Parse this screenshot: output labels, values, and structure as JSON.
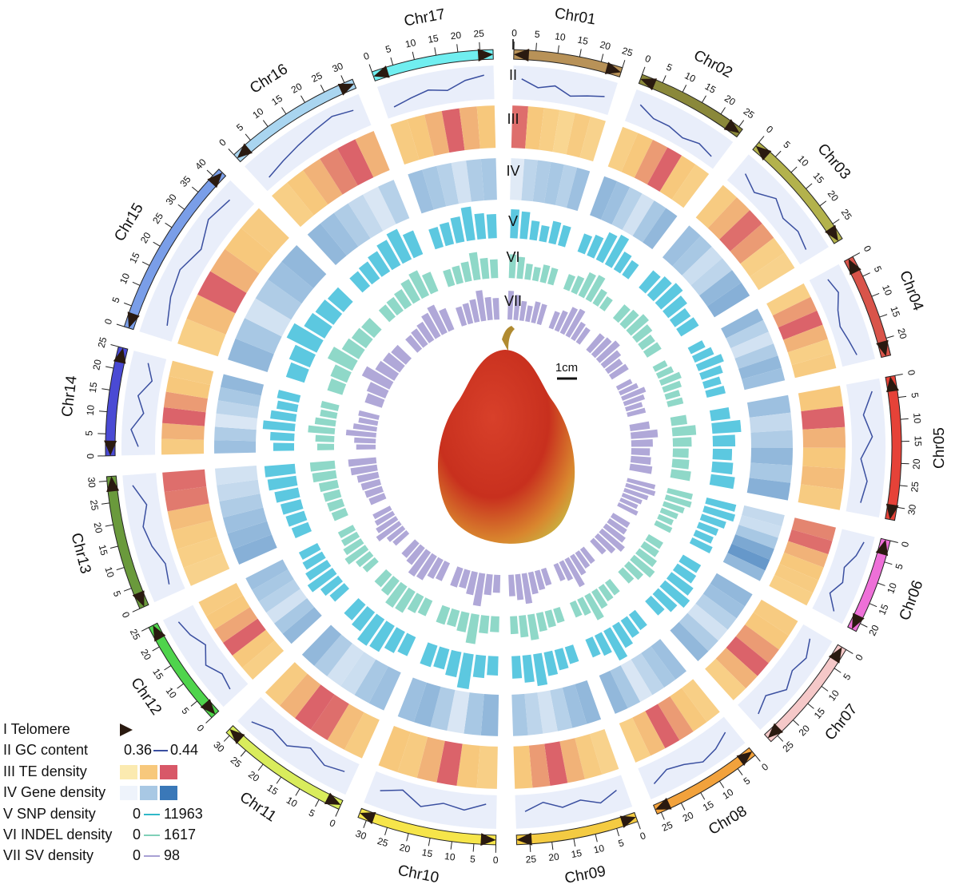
{
  "chart_data": {
    "type": "circos",
    "track_labels": [
      "I",
      "II",
      "III",
      "IV",
      "V",
      "VI",
      "VII"
    ],
    "scale_label": "1cm",
    "legend": [
      {
        "label": "I Telomere"
      },
      {
        "label": "II GC content",
        "min": 0.36,
        "max": 0.44
      },
      {
        "label": "III TE density"
      },
      {
        "label": "IV Gene density"
      },
      {
        "label": "V SNP density",
        "min": 0,
        "max": 11963
      },
      {
        "label": "VI INDEL density",
        "min": 0,
        "max": 1617
      },
      {
        "label": "VII SV density",
        "min": 0,
        "max": 98
      }
    ],
    "chromosomes": [
      {
        "name": "Chr01",
        "length": 25,
        "color": "#b89258",
        "ticks": [
          0,
          5,
          10,
          15,
          20,
          25
        ],
        "gc": [
          0.41,
          0.39,
          0.4,
          0.38,
          0.39,
          0.4
        ],
        "te": [
          0.9,
          0.5,
          0.4,
          0.3,
          0.45,
          0.35
        ],
        "gene": [
          0.1,
          0.35,
          0.45,
          0.5,
          0.4,
          0.55
        ],
        "snp": [
          9000,
          8500,
          6000,
          5000,
          7000,
          6500
        ],
        "indel": [
          1200,
          1100,
          800,
          700,
          900,
          850
        ],
        "sv": [
          80,
          70,
          55,
          45,
          60,
          58
        ]
      },
      {
        "name": "Chr02",
        "length": 26,
        "color": "#8a883a",
        "ticks": [
          0,
          5,
          10,
          15,
          20,
          25
        ],
        "gc": [
          0.41,
          0.39,
          0.39,
          0.38,
          0.39,
          0.38
        ],
        "te": [
          0.4,
          0.5,
          0.7,
          0.95,
          0.5,
          0.4
        ],
        "gene": [
          0.6,
          0.55,
          0.4,
          0.2,
          0.5,
          0.6
        ],
        "snp": [
          6000,
          7000,
          9500,
          10500,
          6500,
          5500
        ],
        "indel": [
          800,
          900,
          1300,
          1400,
          850,
          700
        ],
        "sv": [
          50,
          60,
          80,
          85,
          55,
          50
        ]
      },
      {
        "name": "Chr03",
        "length": 29,
        "color": "#b3b24c",
        "ticks": [
          0,
          5,
          10,
          15,
          20,
          25
        ],
        "gc": [
          0.4,
          0.38,
          0.41,
          0.39,
          0.4,
          0.39
        ],
        "te": [
          0.45,
          0.6,
          0.9,
          0.7,
          0.4,
          0.35
        ],
        "gene": [
          0.55,
          0.5,
          0.25,
          0.35,
          0.6,
          0.65
        ],
        "snp": [
          7000,
          8000,
          9000,
          7500,
          6000,
          6500
        ],
        "indel": [
          900,
          1000,
          1200,
          1000,
          800,
          850
        ],
        "sv": [
          60,
          65,
          75,
          60,
          50,
          55
        ]
      },
      {
        "name": "Chr04",
        "length": 24,
        "color": "#d9544a",
        "ticks": [
          0,
          5,
          10,
          15,
          20
        ],
        "gc": [
          0.4,
          0.41,
          0.39,
          0.38,
          0.39,
          0.4
        ],
        "te": [
          0.4,
          0.7,
          0.95,
          0.6,
          0.4,
          0.45
        ],
        "gene": [
          0.6,
          0.4,
          0.2,
          0.45,
          0.6,
          0.55
        ],
        "snp": [
          5000,
          6500,
          8500,
          7000,
          5500,
          6000
        ],
        "indel": [
          700,
          850,
          1100,
          950,
          750,
          800
        ],
        "sv": [
          45,
          55,
          70,
          60,
          48,
          52
        ]
      },
      {
        "name": "Chr05",
        "length": 33,
        "color": "#e64238",
        "ticks": [
          0,
          5,
          10,
          15,
          20,
          25,
          30
        ],
        "gc": [
          0.42,
          0.39,
          0.41,
          0.38,
          0.4,
          0.39
        ],
        "te": [
          0.5,
          0.95,
          0.6,
          0.5,
          0.55,
          0.45
        ],
        "gene": [
          0.55,
          0.3,
          0.45,
          0.6,
          0.5,
          0.65
        ],
        "snp": [
          6000,
          9000,
          7000,
          6000,
          6500,
          7500
        ],
        "indel": [
          800,
          1200,
          950,
          800,
          850,
          1000
        ],
        "sv": [
          55,
          75,
          60,
          52,
          56,
          62
        ]
      },
      {
        "name": "Chr06",
        "length": 22,
        "color": "#ee70d8",
        "ticks": [
          0,
          5,
          10,
          15,
          20
        ],
        "gc": [
          0.42,
          0.41,
          0.39,
          0.4,
          0.38,
          0.41
        ],
        "te": [
          0.8,
          0.9,
          0.6,
          0.5,
          0.45,
          0.4
        ],
        "gene": [
          0.3,
          0.25,
          0.5,
          0.7,
          0.8,
          0.6
        ],
        "snp": [
          9500,
          10000,
          8000,
          6500,
          6000,
          7000
        ],
        "indel": [
          1300,
          1350,
          1100,
          900,
          800,
          900
        ],
        "sv": [
          80,
          85,
          70,
          58,
          52,
          60
        ]
      },
      {
        "name": "Chr07",
        "length": 27,
        "color": "#f5c8c8",
        "ticks": [
          0,
          5,
          10,
          15,
          20,
          25
        ],
        "gc": [
          0.39,
          0.41,
          0.4,
          0.42,
          0.39,
          0.41
        ],
        "te": [
          0.45,
          0.5,
          0.7,
          0.95,
          0.6,
          0.4
        ],
        "gene": [
          0.6,
          0.55,
          0.4,
          0.2,
          0.45,
          0.6
        ],
        "snp": [
          6500,
          7000,
          8500,
          10000,
          8000,
          6000
        ],
        "indel": [
          850,
          900,
          1100,
          1350,
          1000,
          800
        ],
        "sv": [
          55,
          58,
          68,
          82,
          66,
          50
        ]
      },
      {
        "name": "Chr08",
        "length": 26,
        "color": "#f2a23c",
        "ticks": [
          0,
          5,
          10,
          15,
          20,
          25
        ],
        "gc": [
          0.39,
          0.41,
          0.42,
          0.4,
          0.39,
          0.41
        ],
        "te": [
          0.4,
          0.5,
          0.7,
          0.95,
          0.55,
          0.4
        ],
        "gene": [
          0.55,
          0.5,
          0.35,
          0.15,
          0.5,
          0.6
        ],
        "snp": [
          6000,
          6500,
          8000,
          10500,
          7000,
          6000
        ],
        "indel": [
          800,
          850,
          1000,
          1400,
          900,
          800
        ],
        "sv": [
          50,
          52,
          62,
          88,
          58,
          50
        ]
      },
      {
        "name": "Chr09",
        "length": 28,
        "color": "#f4cb42",
        "ticks": [
          0,
          5,
          10,
          15,
          20,
          25
        ],
        "gc": [
          0.39,
          0.41,
          0.39,
          0.4,
          0.38,
          0.4
        ],
        "te": [
          0.35,
          0.45,
          0.6,
          0.95,
          0.7,
          0.5
        ],
        "gene": [
          0.6,
          0.55,
          0.4,
          0.2,
          0.35,
          0.5
        ],
        "snp": [
          5500,
          6500,
          7500,
          10000,
          8500,
          7000
        ],
        "indel": [
          750,
          850,
          950,
          1300,
          1100,
          900
        ],
        "sv": [
          48,
          55,
          62,
          85,
          72,
          60
        ]
      },
      {
        "name": "Chr10",
        "length": 32,
        "color": "#f6e54a",
        "ticks": [
          0,
          5,
          10,
          15,
          20,
          25,
          30
        ],
        "gc": [
          0.38,
          0.4,
          0.39,
          0.41,
          0.38,
          0.4
        ],
        "te": [
          0.4,
          0.5,
          0.95,
          0.6,
          0.45,
          0.5
        ],
        "gene": [
          0.6,
          0.5,
          0.15,
          0.45,
          0.6,
          0.55
        ],
        "snp": [
          6000,
          7000,
          11000,
          8000,
          6500,
          7000
        ],
        "indel": [
          800,
          900,
          1500,
          1000,
          850,
          900
        ],
        "sv": [
          50,
          58,
          92,
          65,
          52,
          56
        ]
      },
      {
        "name": "Chr11",
        "length": 31,
        "color": "#d9ec5c",
        "ticks": [
          0,
          5,
          10,
          15,
          20,
          25,
          30
        ],
        "gc": [
          0.39,
          0.4,
          0.38,
          0.41,
          0.4,
          0.42
        ],
        "te": [
          0.45,
          0.55,
          0.9,
          0.95,
          0.6,
          0.45
        ],
        "gene": [
          0.55,
          0.5,
          0.25,
          0.2,
          0.45,
          0.6
        ],
        "snp": [
          6500,
          7500,
          9500,
          10000,
          7500,
          6500
        ],
        "indel": [
          850,
          950,
          1250,
          1300,
          950,
          850
        ],
        "sv": [
          55,
          60,
          78,
          82,
          60,
          54
        ]
      },
      {
        "name": "Chr12",
        "length": 25,
        "color": "#4fd44c",
        "ticks": [
          0,
          5,
          10,
          15,
          20,
          25
        ],
        "gc": [
          0.4,
          0.39,
          0.41,
          0.38,
          0.4,
          0.41
        ],
        "te": [
          0.4,
          0.5,
          0.95,
          0.65,
          0.5,
          0.45
        ],
        "gene": [
          0.6,
          0.5,
          0.2,
          0.4,
          0.5,
          0.55
        ],
        "snp": [
          6000,
          7000,
          9500,
          8000,
          7000,
          6500
        ],
        "indel": [
          800,
          900,
          1250,
          1050,
          900,
          850
        ],
        "sv": [
          50,
          56,
          78,
          66,
          58,
          54
        ]
      },
      {
        "name": "Chr13",
        "length": 31,
        "color": "#6a9a3c",
        "ticks": [
          0,
          5,
          10,
          15,
          20,
          25,
          30
        ],
        "gc": [
          0.39,
          0.38,
          0.4,
          0.41,
          0.39,
          0.42
        ],
        "te": [
          0.35,
          0.4,
          0.45,
          0.55,
          0.85,
          0.9
        ],
        "gene": [
          0.65,
          0.6,
          0.55,
          0.45,
          0.3,
          0.2
        ],
        "snp": [
          5500,
          6000,
          6500,
          7500,
          9000,
          9500
        ],
        "indel": [
          750,
          800,
          850,
          950,
          1200,
          1250
        ],
        "sv": [
          46,
          50,
          54,
          60,
          74,
          78
        ]
      },
      {
        "name": "Chr14",
        "length": 25,
        "color": "#4a4ad4",
        "ticks": [
          0,
          5,
          10,
          15,
          20,
          25
        ],
        "gc": [
          0.4,
          0.42,
          0.39,
          0.41,
          0.38,
          0.4
        ],
        "te": [
          0.45,
          0.6,
          0.95,
          0.7,
          0.5,
          0.45
        ],
        "gene": [
          0.55,
          0.45,
          0.15,
          0.35,
          0.5,
          0.6
        ],
        "snp": [
          6500,
          7500,
          10000,
          8000,
          6500,
          7000
        ],
        "indel": [
          850,
          950,
          1350,
          1050,
          850,
          900
        ],
        "sv": [
          54,
          60,
          84,
          66,
          54,
          58
        ]
      },
      {
        "name": "Chr15",
        "length": 42,
        "color": "#7a9ee8",
        "ticks": [
          0,
          5,
          10,
          15,
          20,
          25,
          30,
          35,
          40
        ],
        "gc": [
          0.38,
          0.4,
          0.41,
          0.39,
          0.42,
          0.41
        ],
        "te": [
          0.4,
          0.55,
          0.95,
          0.6,
          0.5,
          0.45
        ],
        "gene": [
          0.6,
          0.5,
          0.2,
          0.45,
          0.55,
          0.6
        ],
        "snp": [
          6000,
          7000,
          10500,
          7500,
          7000,
          6500
        ],
        "indel": [
          800,
          900,
          1400,
          1000,
          900,
          850
        ],
        "sv": [
          50,
          56,
          86,
          62,
          58,
          54
        ]
      },
      {
        "name": "Chr16",
        "length": 32,
        "color": "#a9d5f0",
        "ticks": [
          0,
          5,
          10,
          15,
          20,
          25,
          30
        ],
        "gc": [
          0.38,
          0.39,
          0.4,
          0.41,
          0.42,
          0.41
        ],
        "te": [
          0.4,
          0.5,
          0.6,
          0.8,
          0.95,
          0.6
        ],
        "gene": [
          0.6,
          0.55,
          0.45,
          0.3,
          0.15,
          0.4
        ],
        "snp": [
          6000,
          6500,
          7500,
          9000,
          10500,
          8000
        ],
        "indel": [
          800,
          850,
          950,
          1200,
          1400,
          1050
        ],
        "sv": [
          50,
          54,
          60,
          74,
          86,
          64
        ]
      },
      {
        "name": "Chr17",
        "length": 28,
        "color": "#70eef0",
        "ticks": [
          0,
          5,
          10,
          15,
          20,
          25
        ],
        "gc": [
          0.38,
          0.39,
          0.4,
          0.39,
          0.41,
          0.42
        ],
        "te": [
          0.45,
          0.5,
          0.6,
          0.95,
          0.6,
          0.5
        ],
        "gene": [
          0.55,
          0.5,
          0.4,
          0.2,
          0.45,
          0.5
        ],
        "snp": [
          6500,
          7000,
          8000,
          10500,
          8000,
          7500
        ],
        "indel": [
          850,
          900,
          1000,
          1400,
          1050,
          950
        ],
        "sv": [
          54,
          58,
          64,
          86,
          64,
          60
        ]
      }
    ]
  }
}
